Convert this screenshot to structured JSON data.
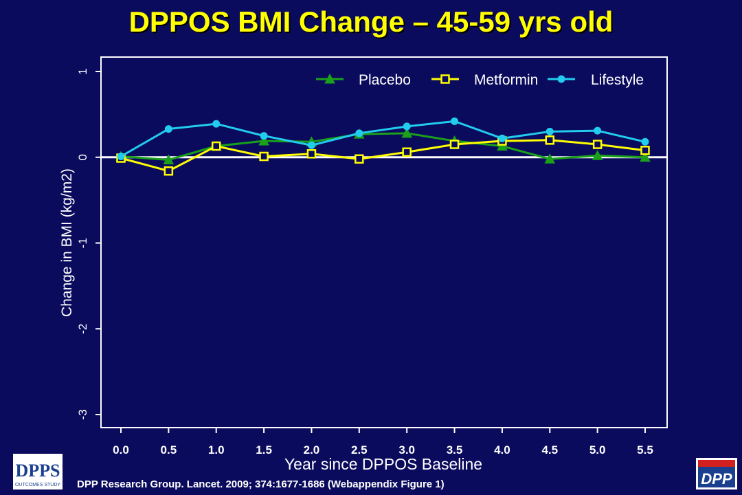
{
  "slide": {
    "title": "DPPOS BMI Change – 45-59 yrs old",
    "citation": "DPP Research Group. Lancet. 2009; 374:1677-1686 (Webappendix Figure 1)"
  },
  "logos": {
    "dppos_letters": "DPPS",
    "dppos_caption": "OUTCOMES STUDY",
    "dpp_letters": "DPP"
  },
  "colors": {
    "background": "#0b0b5e",
    "title": "#ffff00",
    "placebo": "#1aa01a",
    "metformin": "#ffff00",
    "lifestyle": "#22ccee",
    "axis": "#ffffff"
  },
  "chart_data": {
    "type": "line",
    "title": "",
    "xlabel": "Year since DPPOS Baseline",
    "ylabel": "Change in BMI (kg/m2)",
    "x": [
      0.0,
      0.5,
      1.0,
      1.5,
      2.0,
      2.5,
      3.0,
      3.5,
      4.0,
      4.5,
      5.0,
      5.5
    ],
    "xtick_labels": [
      "0.0",
      "0.5",
      "1.0",
      "1.5",
      "2.0",
      "2.5",
      "3.0",
      "3.5",
      "4.0",
      "4.5",
      "5.0",
      "5.5"
    ],
    "ytick_values": [
      1,
      0,
      -1,
      -2,
      -3
    ],
    "ytick_labels": [
      "1",
      "0",
      "-1",
      "-2",
      "-3"
    ],
    "xlim": [
      0.0,
      5.5
    ],
    "ylim": [
      -3.1,
      1.15
    ],
    "grid": false,
    "zero_line": true,
    "legend_position": "top",
    "series": [
      {
        "name": "Placebo",
        "marker": "triangle",
        "color": "#1aa01a",
        "values": [
          0.01,
          -0.03,
          0.13,
          0.19,
          0.18,
          0.27,
          0.28,
          0.19,
          0.13,
          -0.02,
          0.02,
          0.0
        ]
      },
      {
        "name": "Metformin",
        "marker": "square",
        "color": "#ffff00",
        "values": [
          -0.01,
          -0.16,
          0.13,
          0.01,
          0.04,
          -0.02,
          0.06,
          0.15,
          0.19,
          0.2,
          0.15,
          0.08
        ]
      },
      {
        "name": "Lifestyle",
        "marker": "circle",
        "color": "#22ccee",
        "values": [
          0.01,
          0.33,
          0.39,
          0.25,
          0.14,
          0.28,
          0.36,
          0.42,
          0.22,
          0.3,
          0.31,
          0.18
        ]
      }
    ]
  }
}
